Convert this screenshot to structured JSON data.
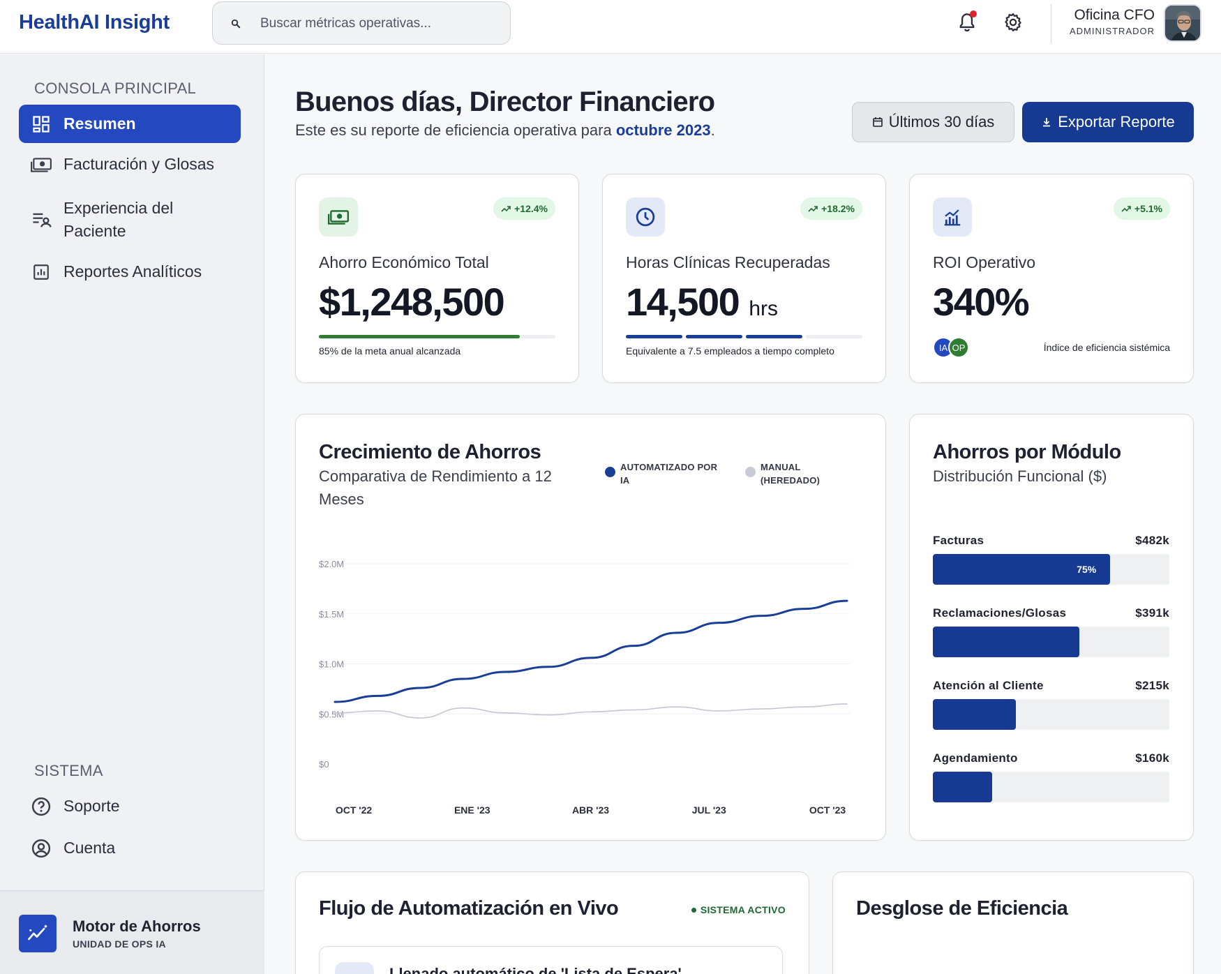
{
  "app": {
    "brand": "HealthAI Insight"
  },
  "search": {
    "placeholder": "Buscar métricas operativas..."
  },
  "user": {
    "name": "Oficina CFO",
    "role": "ADMINISTRADOR"
  },
  "sidebar": {
    "main_section": "CONSOLA PRINCIPAL",
    "items": [
      {
        "label": "Resumen",
        "icon": "dashboard-icon",
        "active": true
      },
      {
        "label": "Facturación y Glosas",
        "icon": "money-icon"
      },
      {
        "label": "Experiencia del Paciente",
        "icon": "patient-list-icon"
      },
      {
        "label": "Reportes Analíticos",
        "icon": "analytics-icon"
      }
    ],
    "system_section": "SISTEMA",
    "system_items": [
      {
        "label": "Soporte",
        "icon": "help-icon"
      },
      {
        "label": "Cuenta",
        "icon": "account-icon"
      }
    ],
    "engine": {
      "title": "Motor de Ahorros",
      "subtitle": "UNIDAD DE OPS IA"
    }
  },
  "main": {
    "greeting": "Buenos días, Director Financiero",
    "subtitle_prefix": "Este es su reporte de eficiencia operativa para ",
    "subtitle_period": "octubre 2023",
    "subtitle_suffix": ".",
    "range_button": "Últimos 30 días",
    "export_button": "Exportar Reporte"
  },
  "kpis": [
    {
      "label": "Ahorro Económico Total",
      "value": "$1,248,500",
      "badge": "+12.4%",
      "footer": "85% de la meta anual alcanzada",
      "progress": 0.85,
      "icon": "money-icon"
    },
    {
      "label": "Horas Clínicas Recuperadas",
      "value": "14,500",
      "unit": "hrs",
      "badge": "+18.2%",
      "footer": "Equivalente a 7.5 empleados a tiempo completo",
      "segments_filled": 3,
      "segments_total": 4,
      "icon": "clock-icon"
    },
    {
      "label": "ROI Operativo",
      "value": "340%",
      "badge": "+5.1%",
      "footer": "Índice de eficiencia sistémica",
      "avatars": [
        "IA",
        "OP"
      ],
      "icon": "chart-bars-icon"
    }
  ],
  "savings_chart": {
    "title": "Crecimiento de Ahorros",
    "subtitle": "Comparativa de Rendimiento a 12 Meses",
    "legend": [
      {
        "label": "AUTOMATIZADO POR IA",
        "color": "#1a3d96"
      },
      {
        "label": "MANUAL (HEREDADO)",
        "color": "#c8cad6"
      }
    ]
  },
  "chart_data": {
    "type": "line",
    "title": "Crecimiento de Ahorros",
    "subtitle": "Comparativa de Rendimiento a 12 Meses",
    "x_tick_labels": [
      "OCT '22",
      "ENE '23",
      "ABR '23",
      "JUL '23",
      "OCT '23"
    ],
    "x": [
      "OCT '22",
      "NOV '22",
      "DIC '22",
      "ENE '23",
      "FEB '23",
      "MAR '23",
      "ABR '23",
      "MAY '23",
      "JUN '23",
      "JUL '23",
      "AGO '23",
      "SEP '23",
      "OCT '23"
    ],
    "y_tick_labels": [
      "$0",
      "$0.5M",
      "$1.0M",
      "$1.5M",
      "$2.0M"
    ],
    "ylim": [
      0,
      2.0
    ],
    "y_unit": "M",
    "series": [
      {
        "name": "AUTOMATIZADO POR IA",
        "color": "#1a3d96",
        "values": [
          0.62,
          0.68,
          0.76,
          0.85,
          0.92,
          0.97,
          1.06,
          1.18,
          1.31,
          1.41,
          1.48,
          1.55,
          1.63
        ]
      },
      {
        "name": "MANUAL (HEREDADO)",
        "color": "#c4c6d3",
        "values": [
          0.51,
          0.53,
          0.46,
          0.56,
          0.51,
          0.49,
          0.52,
          0.54,
          0.57,
          0.53,
          0.55,
          0.57,
          0.6
        ]
      }
    ],
    "grid": true
  },
  "modules": {
    "title": "Ahorros por Módulo",
    "subtitle": "Distribución Funcional ($)",
    "items": [
      {
        "label": "Facturas",
        "value": "$482k",
        "fraction": 0.75,
        "pct_label": "75%"
      },
      {
        "label": "Reclamaciones/Glosas",
        "value": "$391k",
        "fraction": 0.62,
        "pct_label": ""
      },
      {
        "label": "Atención al Cliente",
        "value": "$215k",
        "fraction": 0.35,
        "pct_label": ""
      },
      {
        "label": "Agendamiento",
        "value": "$160k",
        "fraction": 0.25,
        "pct_label": ""
      }
    ]
  },
  "flow": {
    "title": "Flujo de Automatización en Vivo",
    "status": "SISTEMA ACTIVO",
    "first_item": "Llenado automático de 'Lista de Espera'"
  },
  "efficiency": {
    "title": "Desglose de Eficiencia"
  },
  "colors": {
    "primary": "#1a3d96",
    "accent": "#2348c0",
    "positive": "#1e6a31",
    "progress_green": "#2e7d32"
  }
}
